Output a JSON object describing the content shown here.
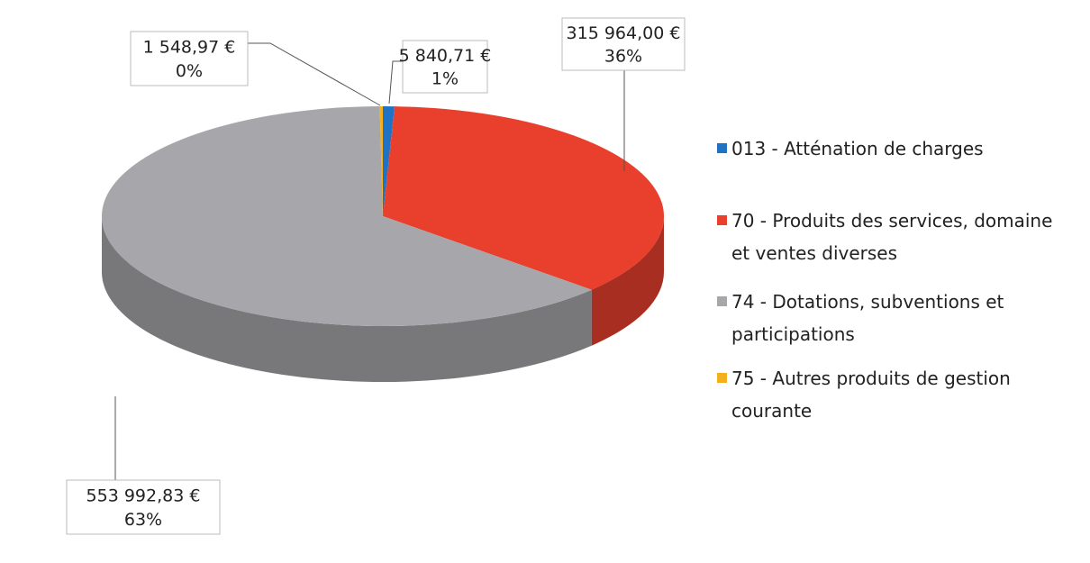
{
  "chart_data": {
    "type": "pie",
    "pie_3d": true,
    "categories": [
      "013 - Atténation de charges",
      "70 - Produits des services, domaine et ventes diverses",
      "74 - Dotations, subventions et participations",
      "75 - Autres produits de gestion courante"
    ],
    "values": [
      5840.71,
      315964.0,
      553992.83,
      1548.97
    ],
    "value_labels": [
      "5 840,71 €",
      "315 964,00 €",
      "553 992,83 €",
      "1 548,97 €"
    ],
    "percents": [
      1,
      36,
      63,
      0
    ],
    "percent_labels": [
      "1%",
      "36%",
      "63%",
      "0%"
    ],
    "colors": [
      "#1f72c4",
      "#e8402c",
      "#a7a7ab",
      "#f2b01e"
    ],
    "legend": "right"
  }
}
